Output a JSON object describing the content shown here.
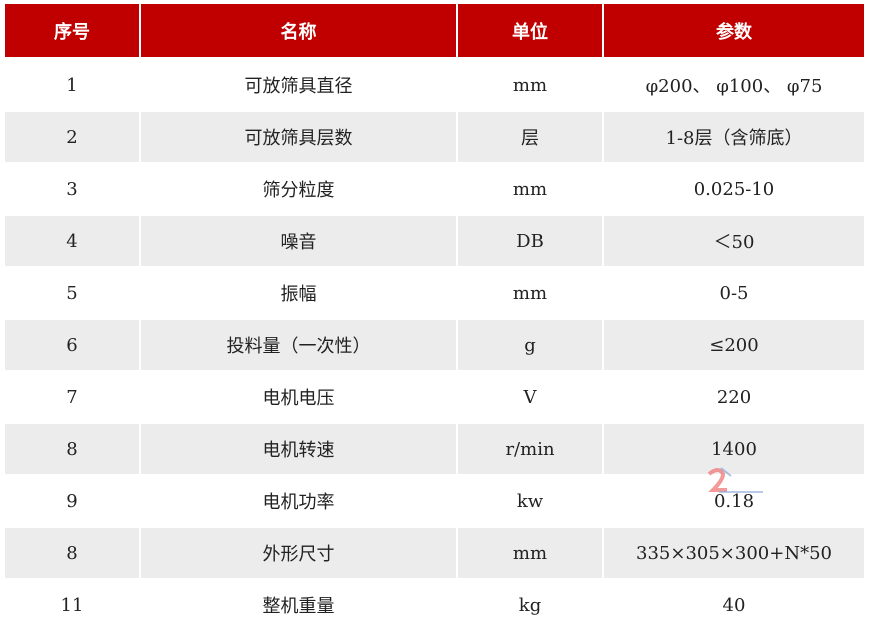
{
  "table": {
    "headers": [
      "序号",
      "名称",
      "单位",
      "参数"
    ],
    "rows": [
      [
        "1",
        "可放筛具直径",
        "mm",
        "φ200、 φ100、 φ75"
      ],
      [
        "2",
        "可放筛具层数",
        "层",
        "1-8层（含筛底）"
      ],
      [
        "3",
        "筛分粒度",
        "mm",
        "0.025-10"
      ],
      [
        "4",
        "噪音",
        "DB",
        "＜50"
      ],
      [
        "5",
        "振幅",
        "mm",
        "0-5"
      ],
      [
        "6",
        "投料量（一次性）",
        "g",
        "≤200"
      ],
      [
        "7",
        "电机电压",
        "V",
        "220"
      ],
      [
        "8",
        "电机转速",
        "r/min",
        "1400"
      ],
      [
        "9",
        "电机功率",
        "kw",
        "0.18"
      ],
      [
        "8",
        "外形尺寸",
        "mm",
        "335×305×300+N*50"
      ],
      [
        "11",
        "整机重量",
        "kg",
        "40"
      ]
    ]
  },
  "colors": {
    "header_bg": "#c00000",
    "alt_row_bg": "#ececec",
    "header_text": "#ffffff"
  }
}
